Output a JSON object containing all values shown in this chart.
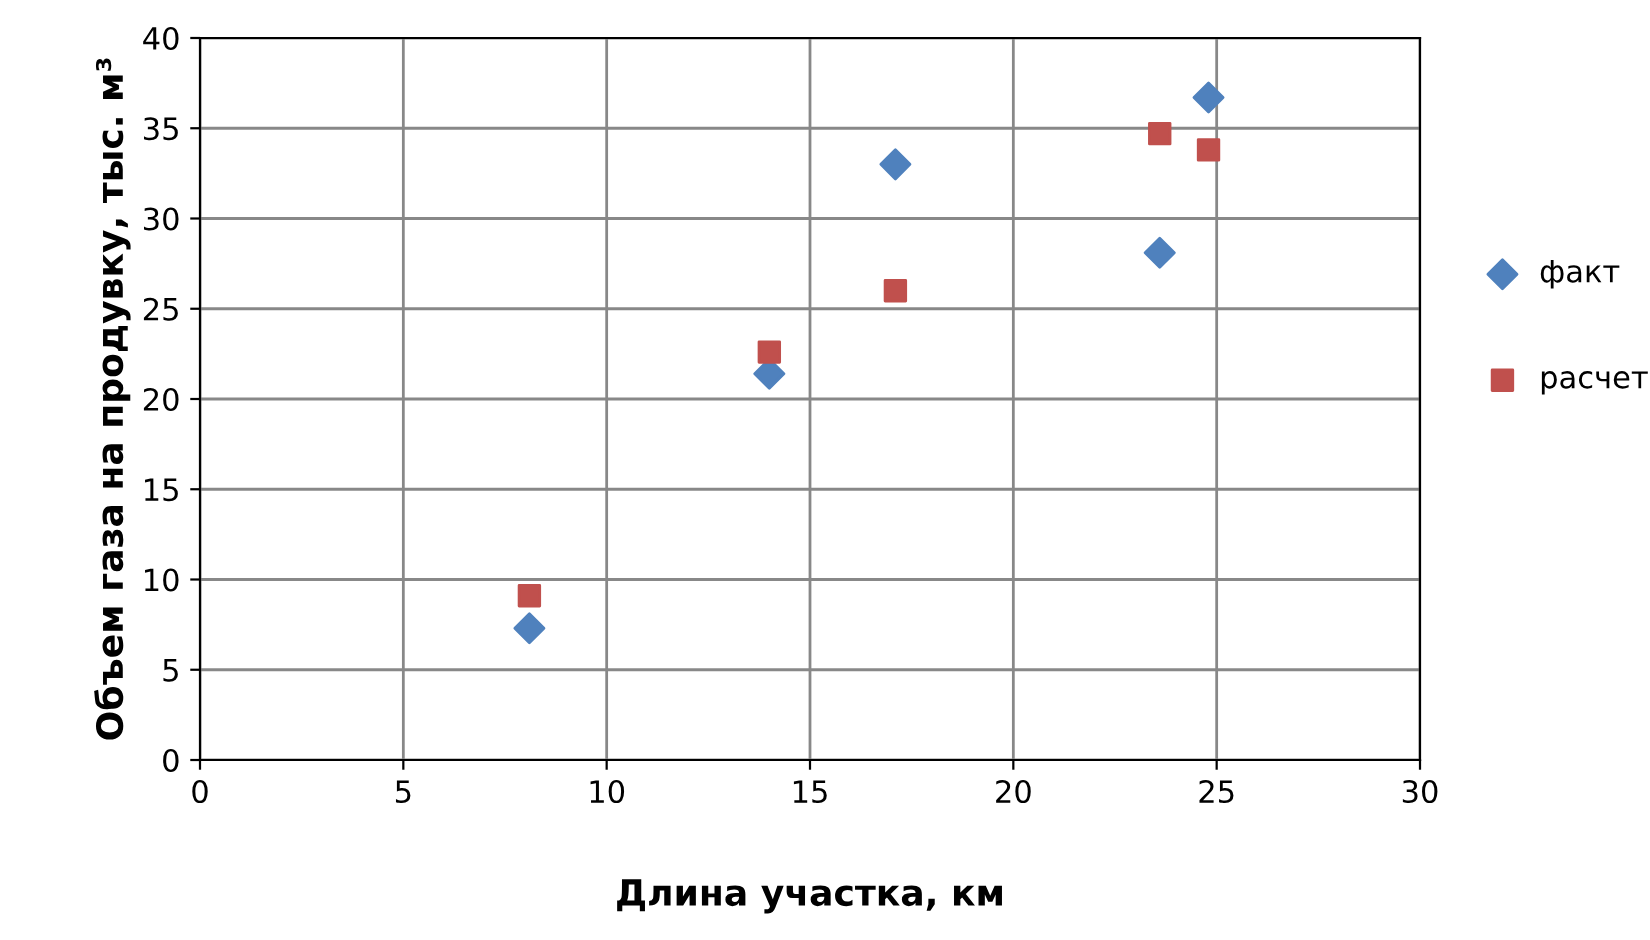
{
  "chart_data": {
    "type": "scatter",
    "xlabel": "Длина участка, км",
    "ylabel": "Объем газа на продувку, тыс. м³",
    "x": [
      8.1,
      14.0,
      17.1,
      23.6,
      24.8
    ],
    "series": [
      {
        "name": "факт",
        "color": "#4f81bd",
        "marker": "diamond",
        "values": [
          7.3,
          21.4,
          33.0,
          28.1,
          36.7
        ]
      },
      {
        "name": "расчет",
        "color": "#c0504d",
        "marker": "square",
        "values": [
          9.1,
          22.6,
          26.0,
          34.7,
          33.8
        ]
      }
    ],
    "xlim": [
      0,
      30
    ],
    "xticks": [
      0,
      5,
      10,
      15,
      20,
      25,
      30
    ],
    "ylim": [
      0,
      40
    ],
    "yticks": [
      0,
      5,
      10,
      15,
      20,
      25,
      30,
      35,
      40
    ],
    "grid": true,
    "legend": "right"
  }
}
